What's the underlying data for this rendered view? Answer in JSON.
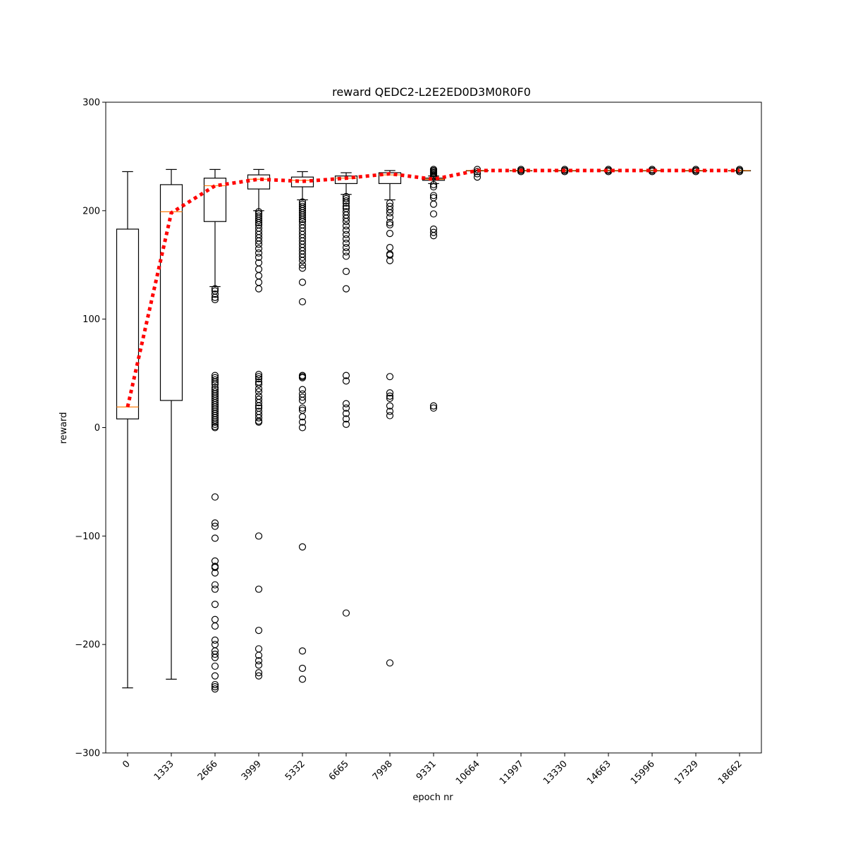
{
  "chart_data": {
    "type": "box",
    "title": "reward QEDC2-L2E2ED0D3M0R0F0",
    "xlabel": "epoch nr",
    "ylabel": "reward",
    "ylim": [
      -300,
      300
    ],
    "yticks": [
      -300,
      -200,
      -100,
      0,
      100,
      200,
      300
    ],
    "ytick_labels": [
      "−300",
      "−200",
      "−100",
      "0",
      "100",
      "200",
      "300"
    ],
    "categories": [
      "0",
      "1333",
      "2666",
      "3999",
      "5332",
      "6665",
      "7998",
      "9331",
      "10664",
      "11997",
      "13330",
      "14663",
      "15996",
      "17329",
      "18662"
    ],
    "boxes": [
      {
        "whislo": -240,
        "q1": 8,
        "med": 19,
        "q3": 183,
        "whishi": 236,
        "fliers": []
      },
      {
        "whislo": -232,
        "q1": 25,
        "med": 199,
        "q3": 224,
        "whishi": 238,
        "fliers": []
      },
      {
        "whislo": 130,
        "q1": 190,
        "med": 223,
        "q3": 230,
        "whishi": 238,
        "fliers": [
          128,
          126,
          123,
          120,
          118,
          48,
          46,
          44,
          42,
          40,
          37,
          35,
          33,
          31,
          29,
          27,
          25,
          23,
          21,
          19,
          17,
          15,
          13,
          11,
          9,
          7,
          5,
          3,
          1,
          0,
          -64,
          -88,
          -91,
          -102,
          -123,
          -128,
          -129,
          -134,
          -145,
          -149,
          -163,
          -177,
          -183,
          -196,
          -200,
          -206,
          -209,
          -212,
          -220,
          -229,
          -237,
          -239,
          -241
        ]
      },
      {
        "whislo": 200,
        "q1": 220,
        "med": 229,
        "q3": 233,
        "whishi": 238,
        "fliers": [
          199,
          197,
          195,
          193,
          191,
          189,
          187,
          184,
          181,
          178,
          175,
          172,
          169,
          165,
          161,
          157,
          152,
          146,
          140,
          134,
          128,
          49,
          47,
          45,
          42,
          40,
          36,
          33,
          29,
          26,
          23,
          20,
          18,
          15,
          12,
          9,
          6,
          5,
          -100,
          -149,
          -187,
          -204,
          -210,
          -215,
          -219,
          -226,
          -229
        ]
      },
      {
        "whislo": 210,
        "q1": 222,
        "med": 228,
        "q3": 231,
        "whishi": 236,
        "fliers": [
          208,
          206,
          204,
          202,
          200,
          198,
          196,
          194,
          192,
          190,
          187,
          184,
          181,
          178,
          175,
          172,
          169,
          166,
          163,
          160,
          157,
          154,
          150,
          147,
          134,
          116,
          48,
          47,
          46,
          35,
          31,
          28,
          25,
          18,
          16,
          10,
          5,
          0,
          -110,
          -206,
          -222,
          -232
        ]
      },
      {
        "whislo": 215,
        "q1": 225,
        "med": 230,
        "q3": 232,
        "whishi": 235,
        "fliers": [
          213,
          211,
          209,
          207,
          204,
          202,
          199,
          196,
          193,
          190,
          186,
          182,
          178,
          174,
          170,
          166,
          162,
          158,
          144,
          128,
          48,
          43,
          22,
          18,
          13,
          8,
          3,
          -171
        ]
      },
      {
        "whislo": 210,
        "q1": 225,
        "med": 233,
        "q3": 235,
        "whishi": 237,
        "fliers": [
          207,
          204,
          201,
          198,
          194,
          189,
          187,
          179,
          166,
          160,
          159,
          154,
          47,
          32,
          29,
          27,
          20,
          15,
          11,
          -217
        ]
      },
      {
        "whislo": 225,
        "q1": 228,
        "med": 229,
        "q3": 230,
        "whishi": 232,
        "fliers": [
          238,
          237,
          236,
          235,
          234,
          233,
          232,
          231,
          224,
          222,
          214,
          212,
          206,
          197,
          183,
          180,
          177,
          20,
          18
        ]
      },
      {
        "whislo": 237,
        "q1": 237,
        "med": 237,
        "q3": 237,
        "whishi": 237,
        "fliers": [
          238,
          236,
          234,
          231
        ]
      },
      {
        "whislo": 237,
        "q1": 237,
        "med": 237,
        "q3": 237,
        "whishi": 237,
        "fliers": [
          238,
          237,
          236
        ]
      },
      {
        "whislo": 237,
        "q1": 237,
        "med": 237,
        "q3": 237,
        "whishi": 237,
        "fliers": [
          238,
          237,
          236
        ]
      },
      {
        "whislo": 237,
        "q1": 237,
        "med": 237,
        "q3": 237,
        "whishi": 237,
        "fliers": [
          238,
          237,
          236
        ]
      },
      {
        "whislo": 237,
        "q1": 237,
        "med": 237,
        "q3": 237,
        "whishi": 237,
        "fliers": [
          238,
          237,
          236
        ]
      },
      {
        "whislo": 237,
        "q1": 237,
        "med": 237,
        "q3": 237,
        "whishi": 237,
        "fliers": [
          238,
          237,
          236
        ]
      },
      {
        "whislo": 237,
        "q1": 237,
        "med": 237,
        "q3": 237,
        "whishi": 237,
        "fliers": [
          238,
          237,
          236
        ]
      }
    ],
    "mean_line": {
      "values": [
        19,
        198,
        223,
        229,
        227,
        230,
        234,
        229,
        237,
        237,
        237,
        237,
        237,
        237,
        237
      ],
      "color": "#ff0000",
      "style": "dotted"
    },
    "colors": {
      "box": "#000000",
      "median": "#ff7f0e",
      "mean_line": "#ff0000"
    },
    "grid": false
  }
}
